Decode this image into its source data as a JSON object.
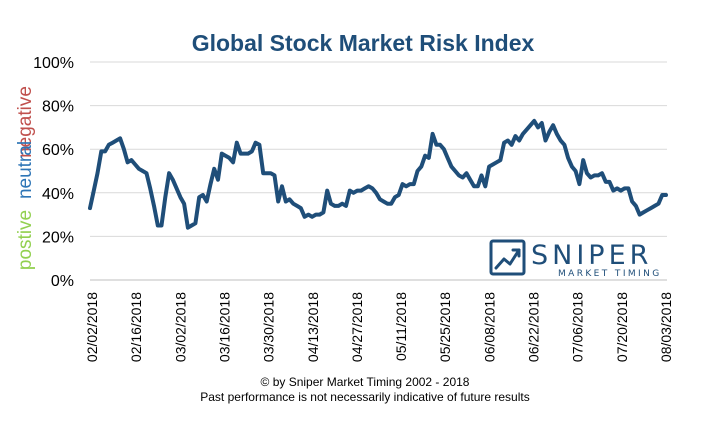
{
  "colors": {
    "title": "#1f4e79",
    "line": "#1f4e79",
    "grid": "#d9d9d9",
    "negative": "#c0504d",
    "neutral": "#2e75b6",
    "positive": "#92d050",
    "logo": "#1f4e79"
  },
  "side_labels": {
    "negative": "negative",
    "neutral": "neutral",
    "positive": "postive"
  },
  "logo": {
    "name": "SNIPER",
    "tagline": "MARKET TIMING",
    "icon": "trend-chart-icon"
  },
  "footer": {
    "line1": "© by Sniper Market Timing 2002 - 2018",
    "line2": "Past performance is not necessarily indicative of future results"
  },
  "chart_data": {
    "type": "line",
    "title": "Global Stock Market Risk Index",
    "xlabel": "",
    "ylabel": "",
    "ylim": [
      0,
      100
    ],
    "yticks": [
      "0%",
      "20%",
      "40%",
      "60%",
      "80%",
      "100%"
    ],
    "grid": true,
    "xticks": [
      "02/02/2018",
      "02/16/2018",
      "03/02/2018",
      "03/16/2018",
      "03/30/2018",
      "04/13/2018",
      "04/27/2018",
      "05/11/2018",
      "05/25/2018",
      "06/08/2018",
      "06/22/2018",
      "07/06/2018",
      "07/20/2018",
      "08/03/2018"
    ],
    "series": [
      {
        "values": [
          33,
          41,
          49,
          59,
          59,
          62,
          63,
          64,
          65,
          60,
          54,
          55,
          53,
          51,
          50,
          49,
          42,
          34,
          25,
          25,
          38,
          49,
          46,
          42,
          38,
          35,
          24,
          25,
          26,
          38,
          39,
          36,
          44,
          51,
          46,
          58,
          57,
          56,
          54,
          63,
          58,
          58,
          58,
          59,
          63,
          62,
          49,
          49,
          49,
          48,
          36,
          43,
          36,
          37,
          35,
          34,
          33,
          29,
          30,
          29,
          30,
          30,
          31,
          41,
          35,
          34,
          34,
          35,
          34,
          41,
          40,
          41,
          41,
          42,
          43,
          42,
          40,
          37,
          36,
          35,
          35,
          38,
          39,
          44,
          43,
          44,
          44,
          50,
          52,
          57,
          56,
          67,
          62,
          62,
          60,
          56,
          52,
          50,
          48,
          47,
          49,
          46,
          43,
          43,
          48,
          43,
          52,
          53,
          54,
          55,
          63,
          64,
          62,
          66,
          64,
          67,
          69,
          71,
          73,
          70,
          72,
          64,
          68,
          71,
          67,
          64,
          62,
          56,
          52,
          50,
          44,
          55,
          49,
          47,
          48,
          48,
          49,
          45,
          45,
          41,
          42,
          41,
          42,
          42,
          36,
          34,
          30,
          31,
          32,
          33,
          34,
          35,
          39,
          39
        ]
      }
    ]
  }
}
